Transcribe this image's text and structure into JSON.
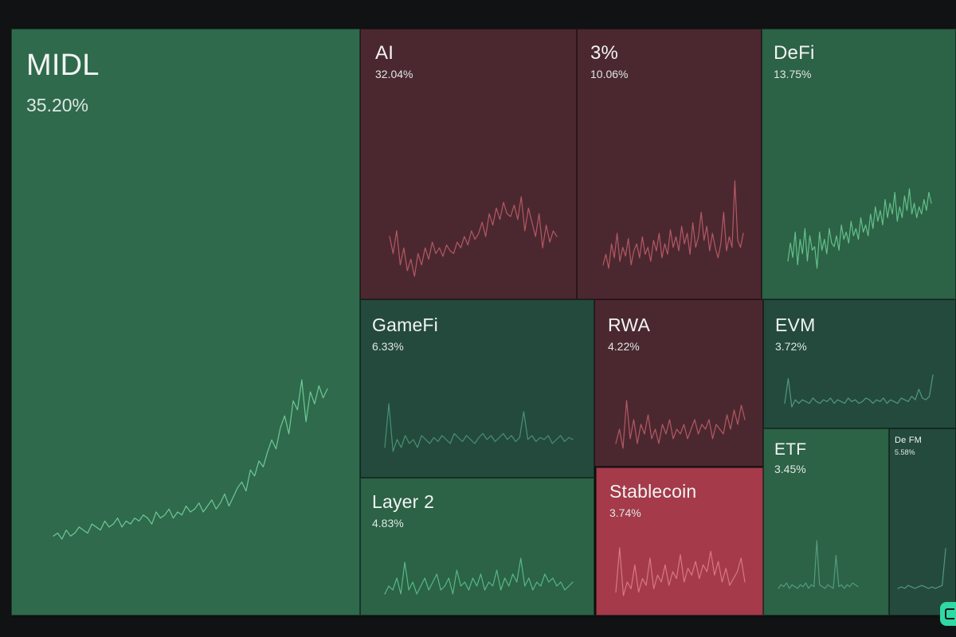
{
  "tiles": [
    {
      "id": "midl",
      "name": "MIDL",
      "change": "35.20%",
      "trend": "up",
      "color": "#7ad9a0",
      "series": [
        30,
        31,
        29,
        32,
        30,
        31,
        33,
        32,
        31,
        34,
        33,
        32,
        35,
        33,
        34,
        36,
        33,
        35,
        34,
        36,
        35,
        37,
        36,
        34,
        38,
        36,
        37,
        39,
        36,
        38,
        37,
        40,
        38,
        39,
        41,
        38,
        40,
        42,
        39,
        41,
        44,
        40,
        43,
        46,
        48,
        45,
        52,
        50,
        55,
        53,
        58,
        62,
        59,
        66,
        70,
        64,
        75,
        72,
        82,
        68,
        78,
        74,
        80,
        76,
        79
      ]
    },
    {
      "id": "ai",
      "name": "AI",
      "change": "32.04%",
      "trend": "down",
      "color": "#c7606c",
      "series": [
        50,
        44,
        52,
        40,
        46,
        38,
        42,
        36,
        44,
        40,
        46,
        42,
        48,
        44,
        46,
        43,
        47,
        45,
        44,
        48,
        46,
        50,
        47,
        52,
        49,
        51,
        55,
        50,
        58,
        54,
        60,
        56,
        62,
        58,
        57,
        61,
        56,
        64,
        52,
        60,
        55,
        50,
        58,
        46,
        54,
        48,
        52,
        50
      ]
    },
    {
      "id": "3pct",
      "name": "3%",
      "change": "10.06%",
      "trend": "down",
      "color": "#c7606c",
      "series": [
        40,
        46,
        38,
        52,
        44,
        58,
        42,
        50,
        45,
        55,
        40,
        48,
        52,
        44,
        56,
        46,
        50,
        42,
        54,
        48,
        58,
        44,
        52,
        46,
        60,
        50,
        56,
        48,
        62,
        52,
        58,
        46,
        64,
        50,
        56,
        70,
        54,
        62,
        48,
        58,
        50,
        44,
        52,
        70,
        48,
        56,
        50,
        88,
        54,
        50,
        58
      ]
    },
    {
      "id": "defi",
      "name": "DeFi",
      "change": "13.75%",
      "trend": "up",
      "color": "#6dd196",
      "series": [
        40,
        50,
        42,
        56,
        38,
        52,
        44,
        58,
        40,
        54,
        46,
        48,
        36,
        56,
        46,
        52,
        44,
        58,
        50,
        48,
        54,
        46,
        60,
        52,
        56,
        50,
        62,
        54,
        58,
        52,
        64,
        56,
        60,
        54,
        66,
        58,
        70,
        62,
        68,
        60,
        74,
        64,
        72,
        66,
        78,
        62,
        70,
        64,
        76,
        68,
        80,
        66,
        72,
        64,
        70,
        66,
        74,
        68,
        78,
        72
      ]
    },
    {
      "id": "gamefi",
      "name": "GameFi",
      "change": "6.33%",
      "trend": "flat",
      "color": "#4f9d7a",
      "series": [
        40,
        62,
        38,
        44,
        40,
        46,
        42,
        44,
        40,
        46,
        44,
        42,
        45,
        43,
        46,
        44,
        42,
        47,
        45,
        43,
        46,
        44,
        42,
        45,
        47,
        44,
        46,
        43,
        45,
        47,
        44,
        46,
        43,
        45,
        58,
        44,
        46,
        43,
        45,
        44,
        46,
        42,
        44,
        46,
        43,
        45,
        44
      ]
    },
    {
      "id": "rwa",
      "name": "RWA",
      "change": "4.22%",
      "trend": "down",
      "color": "#c7606c",
      "series": [
        42,
        48,
        40,
        60,
        44,
        52,
        42,
        50,
        46,
        54,
        44,
        48,
        42,
        50,
        46,
        52,
        44,
        48,
        46,
        50,
        44,
        48,
        52,
        46,
        50,
        48,
        52,
        44,
        50,
        48,
        46,
        54,
        48,
        56,
        50,
        58,
        52
      ]
    },
    {
      "id": "evm",
      "name": "EVM",
      "change": "3.72%",
      "trend": "flat",
      "color": "#5aa787",
      "series": [
        44,
        58,
        42,
        46,
        44,
        46,
        45,
        44,
        47,
        45,
        44,
        46,
        45,
        47,
        44,
        46,
        45,
        44,
        47,
        45,
        46,
        44,
        45,
        47,
        46,
        44,
        46,
        45,
        47,
        44,
        46,
        45,
        44,
        47,
        46,
        45,
        48,
        46,
        52,
        47,
        46,
        48,
        60
      ]
    },
    {
      "id": "etf",
      "name": "ETF",
      "change": "3.45%",
      "trend": "flat",
      "color": "#5aa787",
      "series": [
        44,
        46,
        45,
        47,
        44,
        46,
        45,
        44,
        46,
        45,
        47,
        44,
        46,
        45,
        70,
        46,
        45,
        44,
        46,
        45,
        44,
        62,
        45,
        46,
        44,
        46,
        45,
        47,
        46,
        45
      ]
    },
    {
      "id": "defm",
      "name": "De FM",
      "change": "5.58%",
      "trend": "flat",
      "color": "#5aa787",
      "series": [
        44,
        45,
        44,
        46,
        45,
        44,
        45,
        46,
        45,
        44,
        45,
        44,
        45,
        46,
        70
      ]
    },
    {
      "id": "layer2",
      "name": "Layer 2",
      "change": "4.83%",
      "trend": "flat",
      "color": "#5cc990",
      "series": [
        44,
        48,
        46,
        52,
        44,
        60,
        46,
        50,
        44,
        48,
        52,
        46,
        50,
        54,
        46,
        48,
        52,
        44,
        56,
        48,
        50,
        46,
        52,
        48,
        54,
        46,
        50,
        48,
        56,
        46,
        52,
        48,
        54,
        50,
        62,
        48,
        52,
        46,
        50,
        48,
        54,
        50,
        52,
        48,
        50,
        46,
        48,
        50
      ]
    },
    {
      "id": "stablecoin",
      "name": "Stablecoin",
      "change": "3.74%",
      "trend": "down",
      "color": "#e0848f",
      "series": [
        44,
        70,
        42,
        50,
        46,
        60,
        44,
        52,
        48,
        64,
        46,
        54,
        50,
        60,
        48,
        56,
        52,
        66,
        50,
        58,
        54,
        62,
        52,
        60,
        56,
        68,
        54,
        62,
        50,
        58,
        48,
        52,
        56,
        64,
        50
      ]
    }
  ]
}
